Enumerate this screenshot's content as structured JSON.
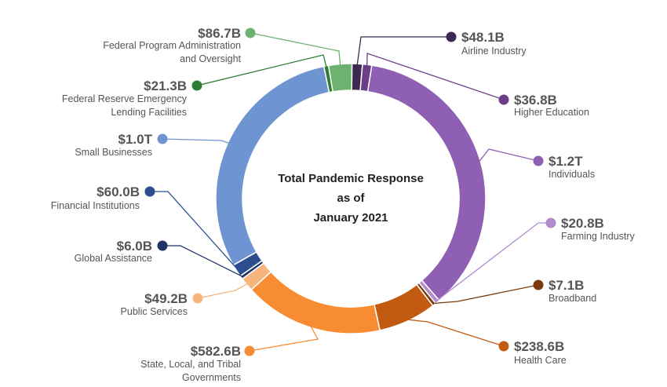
{
  "chart_data": {
    "type": "pie",
    "style": "donut",
    "title_lines": [
      "Total Pandemic Response",
      "as of",
      "January 2021"
    ],
    "units": "USD",
    "slices": [
      {
        "name": "Airline Industry",
        "value_label": "$48.1B",
        "value": 48.1,
        "color": "#3d2a52"
      },
      {
        "name": "Higher Education",
        "value_label": "$36.8B",
        "value": 36.8,
        "color": "#6b3f86"
      },
      {
        "name": "Individuals",
        "value_label": "$1.2T",
        "value": 1200,
        "color": "#8f5fb3"
      },
      {
        "name": "Farming Industry",
        "value_label": "$20.8B",
        "value": 20.8,
        "color": "#b18ccc"
      },
      {
        "name": "Broadband",
        "value_label": "$7.1B",
        "value": 7.1,
        "color": "#7a3a0c"
      },
      {
        "name": "Health Care",
        "value_label": "$238.6B",
        "value": 238.6,
        "color": "#c25a12"
      },
      {
        "name": "State, Local, and Tribal Governments",
        "value_label": "$582.6B",
        "value": 582.6,
        "color": "#f88c33"
      },
      {
        "name": "Public Services",
        "value_label": "$49.2B",
        "value": 49.2,
        "color": "#f6b57c"
      },
      {
        "name": "Global Assistance",
        "value_label": "$6.0B",
        "value": 6.0,
        "color": "#1f3463"
      },
      {
        "name": "Financial Institutions",
        "value_label": "$60.0B",
        "value": 60.0,
        "color": "#2c4e8f"
      },
      {
        "name": "Small Businesses",
        "value_label": "$1.0T",
        "value": 1000,
        "color": "#6e94d2"
      },
      {
        "name": "Federal Reserve Emergency Lending Facilities",
        "value_label": "$21.3B",
        "value": 21.3,
        "color": "#2e7d32"
      },
      {
        "name": "Federal Program Administration and Oversight",
        "value_label": "$86.7B",
        "value": 86.7,
        "color": "#6db36f"
      }
    ],
    "legend": "callout labels around ring"
  }
}
